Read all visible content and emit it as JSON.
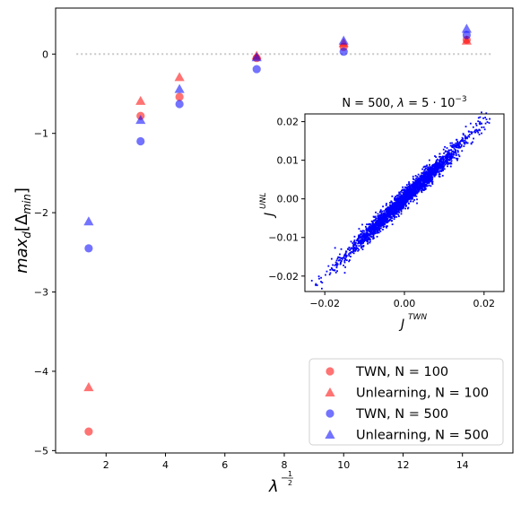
{
  "chart_data": [
    {
      "type": "scatter",
      "title": "",
      "xlabel": "λ^(-1/2)",
      "ylabel": "max_d[Δ_min]",
      "xlim": [
        0.3,
        15.7
      ],
      "ylim": [
        -5.03,
        0.58
      ],
      "x_ticks": [
        2,
        4,
        6,
        8,
        10,
        12,
        14
      ],
      "y_ticks": [
        0,
        -1,
        -2,
        -3,
        -4,
        -5
      ],
      "reference_line": {
        "y": 0,
        "x_range": [
          1,
          15
        ],
        "style": "dotted",
        "color": "#c8c8c8"
      },
      "legend_position": "lower-right",
      "series": [
        {
          "name": "TWN, N = 100",
          "marker": "circle",
          "color": "#ff0000",
          "x": [
            1.414,
            3.162,
            4.472,
            7.071,
            10.0,
            14.142
          ],
          "y": [
            -4.76,
            -0.78,
            -0.54,
            -0.05,
            0.09,
            0.18
          ]
        },
        {
          "name": "Unlearning, N = 100",
          "marker": "triangle",
          "color": "#ff0000",
          "x": [
            1.414,
            3.162,
            4.472,
            7.071,
            10.0,
            14.142
          ],
          "y": [
            -4.2,
            -0.59,
            -0.29,
            -0.02,
            0.14,
            0.17
          ]
        },
        {
          "name": "TWN, N = 500",
          "marker": "circle",
          "color": "#0000ff",
          "x": [
            1.414,
            3.162,
            4.472,
            7.071,
            10.0,
            14.142
          ],
          "y": [
            -2.45,
            -1.1,
            -0.63,
            -0.19,
            0.03,
            0.24
          ]
        },
        {
          "name": "Unlearning, N = 500",
          "marker": "triangle",
          "color": "#0000ff",
          "x": [
            1.414,
            3.162,
            4.472,
            7.071,
            10.0,
            14.142
          ],
          "y": [
            -2.11,
            -0.83,
            -0.44,
            -0.04,
            0.17,
            0.32
          ]
        }
      ]
    },
    {
      "type": "scatter",
      "title": "N = 500, λ = 5·10⁻³",
      "xlabel": "J^TWN",
      "ylabel": "J^UNL",
      "xlim": [
        -0.025,
        0.025
      ],
      "ylim": [
        -0.024,
        0.022
      ],
      "x_ticks": [
        -0.02,
        0.0,
        0.02
      ],
      "y_ticks": [
        0.02,
        0.01,
        0.0,
        -0.01,
        -0.02
      ],
      "x_tick_labels": [
        "−0.02",
        "0.00",
        "0.02"
      ],
      "y_tick_labels": [
        "0.02",
        "0.01",
        "0.00",
        "−0.01",
        "−0.02"
      ],
      "color": "#0000ff",
      "description_of_distribution": "dense diagonal cloud along J^UNL ≈ J^TWN",
      "points_approx": {
        "n": 2400,
        "slope": 1.0,
        "spread": 0.0017,
        "x_range": [
          -0.022,
          0.022
        ]
      }
    }
  ],
  "legend": {
    "entries": [
      {
        "label": "TWN, N = 100"
      },
      {
        "label": "Unlearning, N = 100"
      },
      {
        "label": "TWN, N = 500"
      },
      {
        "label": "Unlearning, N = 500"
      }
    ]
  },
  "labels": {
    "main_ylabel": "max",
    "main_ylabel_sub": "d",
    "main_ylabel_rest_open": "[Δ",
    "main_ylabel_sub2": "min",
    "main_ylabel_close": "]",
    "main_xlabel_base": "λ",
    "main_xlabel_exp_sign": "−",
    "main_xlabel_exp_num": "1",
    "main_xlabel_exp_den": "2",
    "inset_title_prefix": "N = 500, ",
    "inset_title_lambda": "λ",
    "inset_title_rest": " = 5 · 10",
    "inset_title_exp": "−3",
    "inset_xlabel_base": "J",
    "inset_xlabel_sup": "TWN",
    "inset_ylabel_base": "J",
    "inset_ylabel_sup": "UNL"
  }
}
